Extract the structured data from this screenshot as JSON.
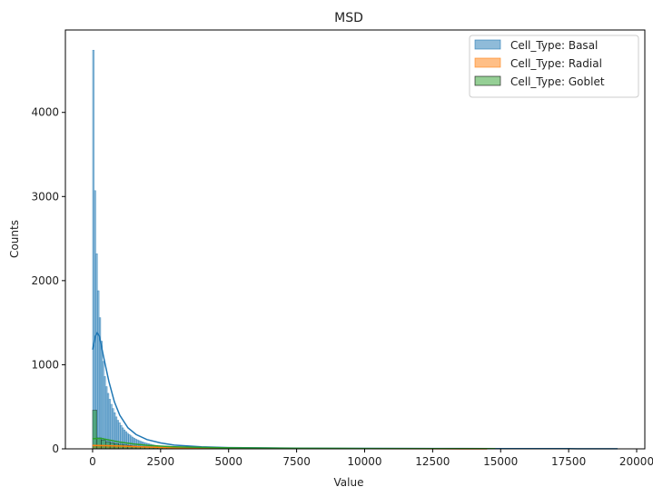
{
  "chart_data": {
    "type": "histogram",
    "title": "MSD",
    "xlabel": "Value",
    "ylabel": "Counts",
    "xlim": [
      -1000,
      20300
    ],
    "ylim": [
      0,
      4980
    ],
    "xticks": [
      0,
      2500,
      5000,
      7500,
      10000,
      12500,
      15000,
      17500,
      20000
    ],
    "yticks": [
      0,
      1000,
      2000,
      3000,
      4000
    ],
    "legend_position": "top-right",
    "series": [
      {
        "name": "Cell_Type: Basal",
        "color": "#1f77b4",
        "bin_width": 60,
        "bin_start": 0,
        "counts": [
          4740,
          3070,
          2320,
          1880,
          1560,
          1280,
          1040,
          860,
          740,
          660,
          590,
          530,
          480,
          430,
          380,
          340,
          310,
          280,
          250,
          225,
          205,
          185,
          170,
          155,
          140,
          128,
          117,
          107,
          98,
          90,
          83,
          76,
          70,
          65,
          60,
          55,
          50,
          46,
          42,
          39
        ],
        "kde": [
          [
            0,
            1180
          ],
          [
            100,
            1340
          ],
          [
            170,
            1380
          ],
          [
            250,
            1340
          ],
          [
            400,
            1100
          ],
          [
            600,
            800
          ],
          [
            800,
            560
          ],
          [
            1000,
            400
          ],
          [
            1300,
            250
          ],
          [
            1600,
            170
          ],
          [
            2000,
            110
          ],
          [
            2500,
            70
          ],
          [
            3000,
            45
          ],
          [
            4000,
            25
          ],
          [
            5000,
            15
          ],
          [
            7500,
            8
          ],
          [
            10000,
            5
          ],
          [
            12500,
            4
          ],
          [
            15000,
            3
          ],
          [
            17500,
            2
          ],
          [
            19300,
            1
          ]
        ]
      },
      {
        "name": "Cell_Type: Radial",
        "color": "#ff7f0e",
        "bin_width": 300,
        "bin_start": 0,
        "counts": [
          45,
          42,
          38,
          34,
          30,
          27,
          24,
          21,
          19,
          17,
          15,
          13,
          12,
          11,
          10,
          9,
          8,
          7,
          6,
          6
        ],
        "kde": [
          [
            0,
            40
          ],
          [
            500,
            38
          ],
          [
            1000,
            34
          ],
          [
            1500,
            28
          ],
          [
            2000,
            22
          ],
          [
            2500,
            17
          ],
          [
            3000,
            13
          ],
          [
            4000,
            9
          ],
          [
            5000,
            6
          ],
          [
            7500,
            3
          ],
          [
            10000,
            2
          ],
          [
            12500,
            1
          ],
          [
            14500,
            0
          ]
        ]
      },
      {
        "name": "Cell_Type: Goblet",
        "color": "#2ca02c",
        "bin_width": 160,
        "bin_start": 0,
        "counts": [
          460,
          130,
          105,
          85,
          72,
          62,
          54,
          47,
          41,
          36,
          32,
          28,
          25,
          22,
          20,
          18,
          16,
          14,
          13,
          12
        ],
        "kde": [
          [
            0,
            120
          ],
          [
            300,
            125
          ],
          [
            600,
            105
          ],
          [
            1000,
            80
          ],
          [
            1500,
            58
          ],
          [
            2000,
            42
          ],
          [
            2500,
            32
          ],
          [
            3000,
            25
          ],
          [
            4000,
            17
          ],
          [
            5000,
            12
          ],
          [
            7500,
            7
          ],
          [
            10000,
            4
          ],
          [
            12500,
            3
          ],
          [
            14800,
            2
          ]
        ]
      }
    ]
  }
}
